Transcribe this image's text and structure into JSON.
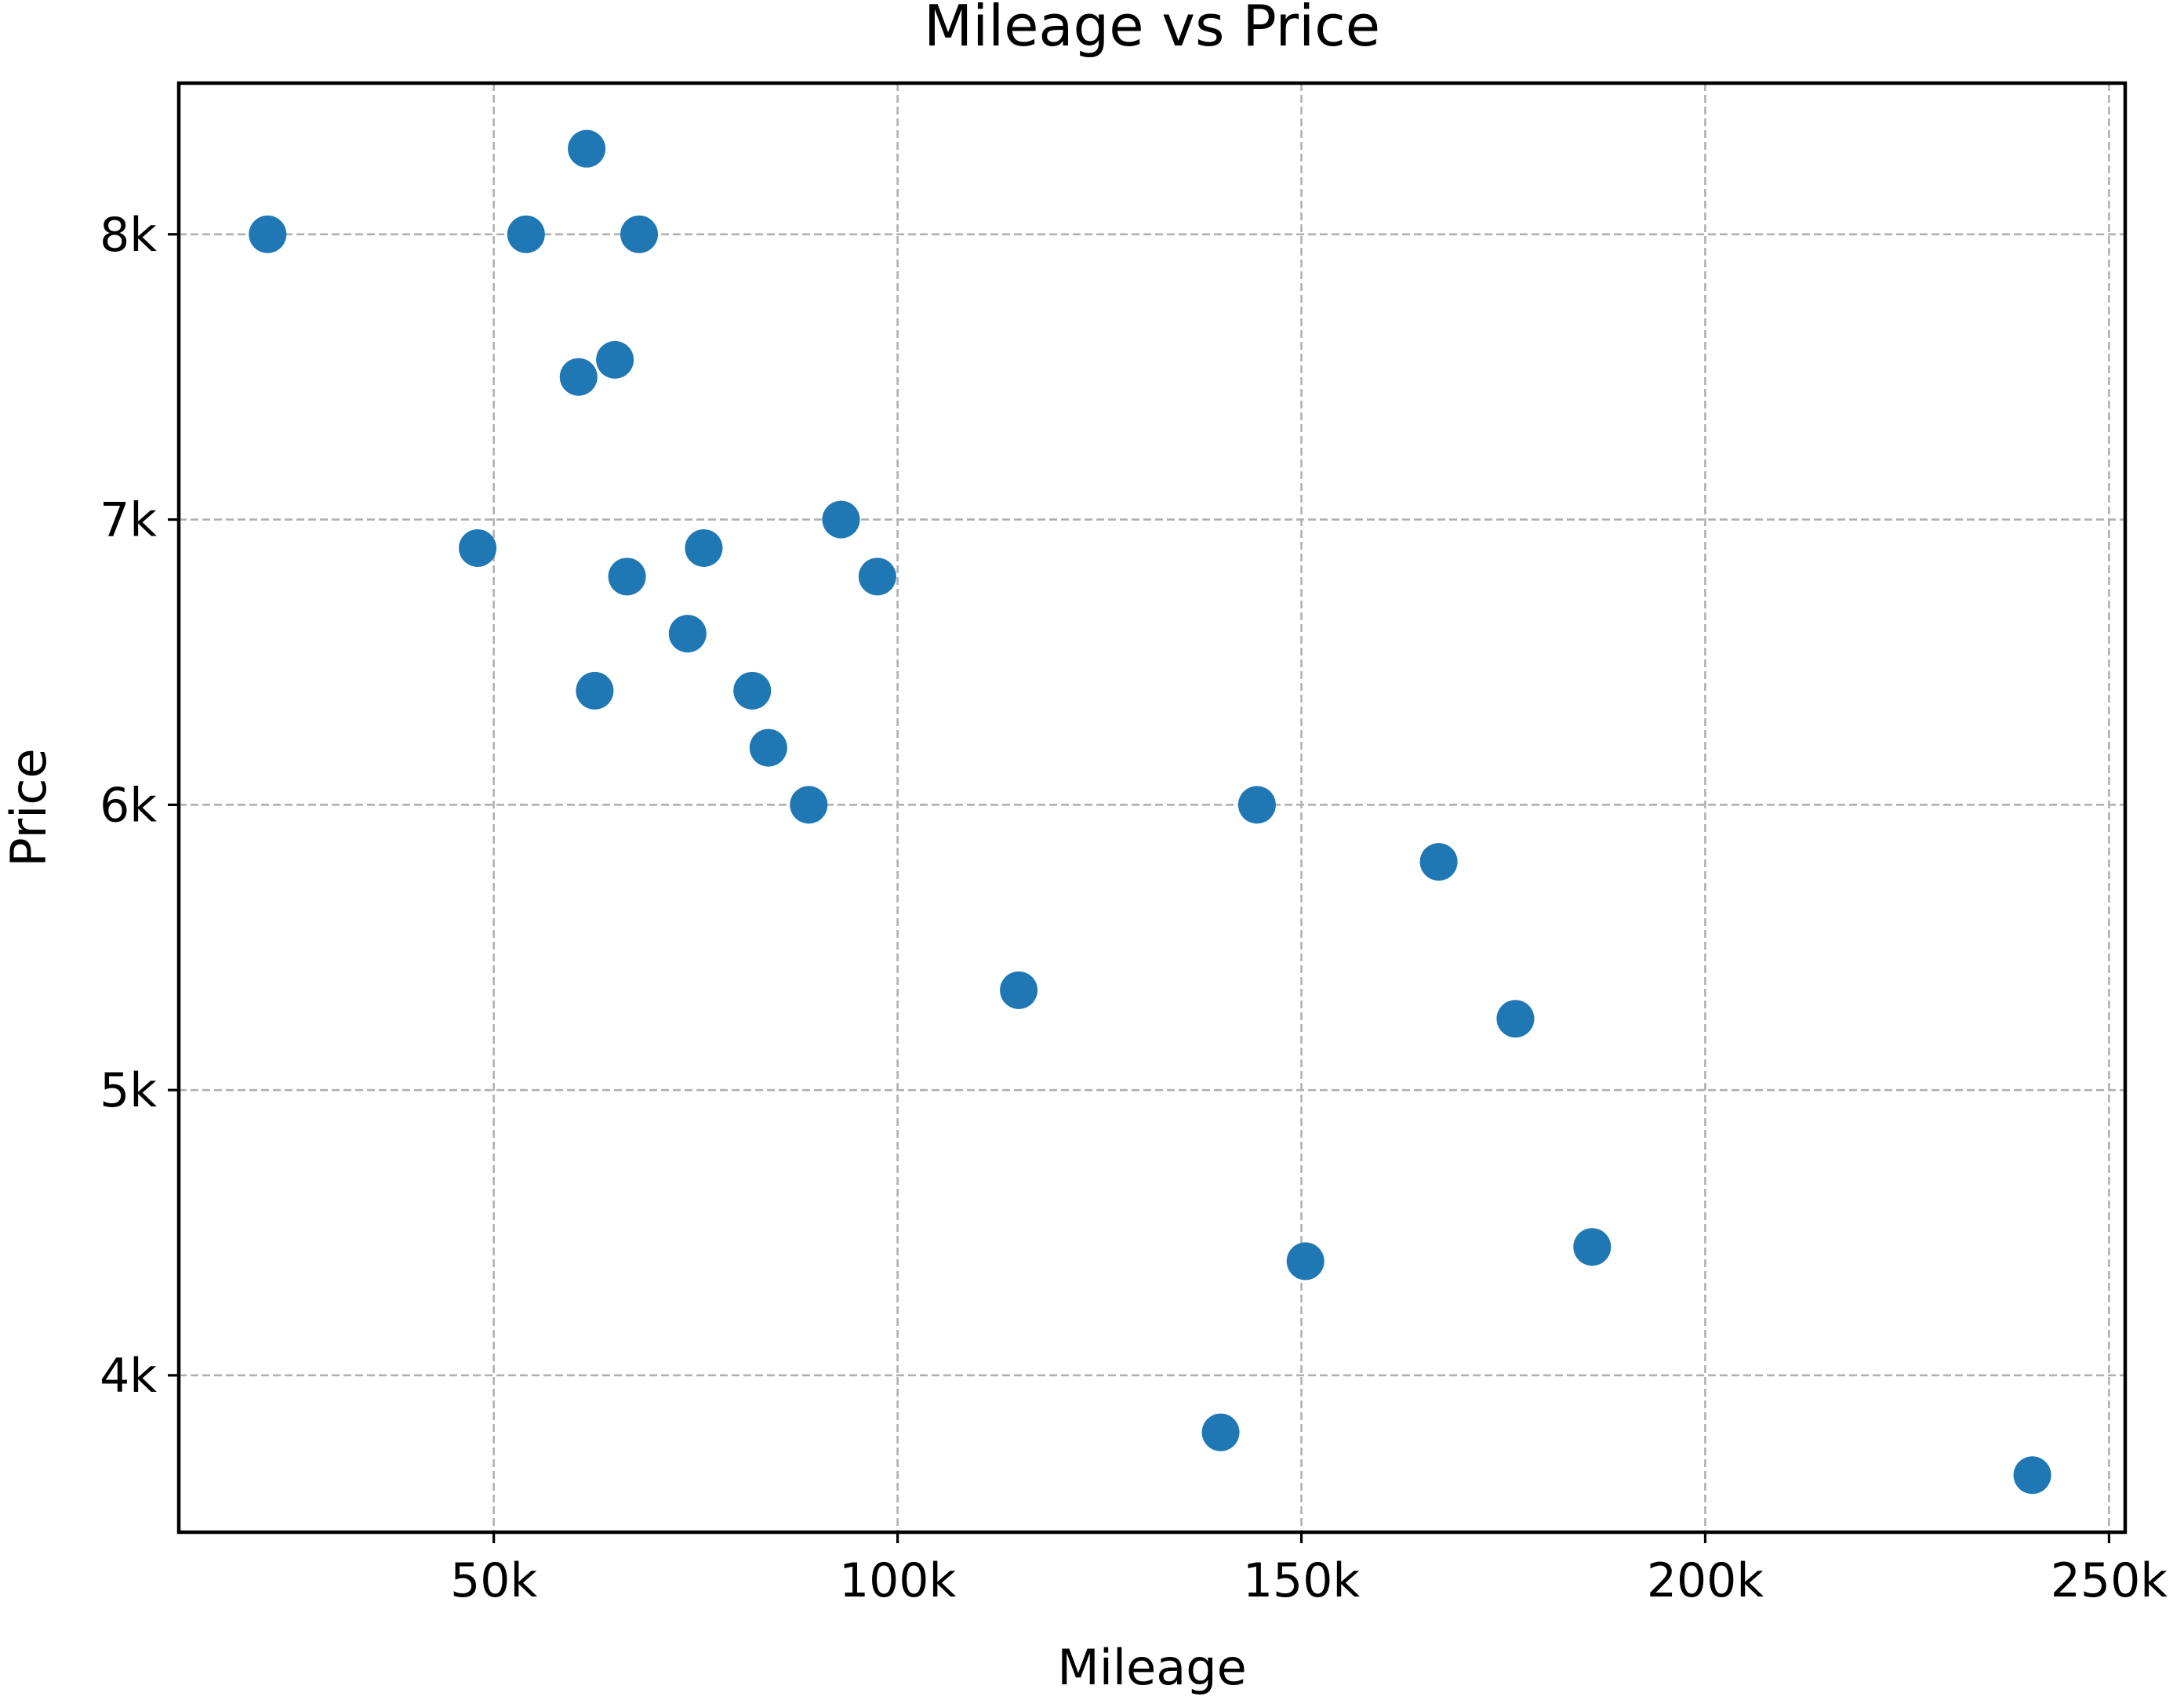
{
  "chart_data": {
    "type": "scatter",
    "title": "Mileage vs Price",
    "xlabel": "Mileage",
    "ylabel": "Price",
    "xlim": [
      11000,
      252000
    ],
    "ylim": [
      3450,
      8530
    ],
    "grid": true,
    "colors": {
      "marker": "#1f77b4",
      "grid": "#b0b0b0",
      "axes": "#000000"
    },
    "x_ticks": [
      {
        "value": 50000,
        "label": "50k"
      },
      {
        "value": 100000,
        "label": "100k"
      },
      {
        "value": 150000,
        "label": "150k"
      },
      {
        "value": 200000,
        "label": "200k"
      },
      {
        "value": 250000,
        "label": "250k"
      }
    ],
    "y_ticks": [
      {
        "value": 4000,
        "label": "4k"
      },
      {
        "value": 5000,
        "label": "5k"
      },
      {
        "value": 6000,
        "label": "6k"
      },
      {
        "value": 7000,
        "label": "7k"
      },
      {
        "value": 8000,
        "label": "8k"
      }
    ],
    "points": [
      {
        "x": 22000,
        "y": 8000
      },
      {
        "x": 48000,
        "y": 6900
      },
      {
        "x": 54000,
        "y": 8000
      },
      {
        "x": 60500,
        "y": 7500
      },
      {
        "x": 61500,
        "y": 8300
      },
      {
        "x": 62500,
        "y": 6400
      },
      {
        "x": 65000,
        "y": 7560
      },
      {
        "x": 66500,
        "y": 6800
      },
      {
        "x": 68000,
        "y": 8000
      },
      {
        "x": 74000,
        "y": 6600
      },
      {
        "x": 76000,
        "y": 6900
      },
      {
        "x": 82000,
        "y": 6400
      },
      {
        "x": 84000,
        "y": 6200
      },
      {
        "x": 89000,
        "y": 6000
      },
      {
        "x": 93000,
        "y": 7000
      },
      {
        "x": 97500,
        "y": 6800
      },
      {
        "x": 115000,
        "y": 5350
      },
      {
        "x": 140000,
        "y": 3800
      },
      {
        "x": 144500,
        "y": 6000
      },
      {
        "x": 150500,
        "y": 4400
      },
      {
        "x": 167000,
        "y": 5800
      },
      {
        "x": 176500,
        "y": 5250
      },
      {
        "x": 186000,
        "y": 4450
      },
      {
        "x": 240500,
        "y": 3650
      }
    ]
  }
}
